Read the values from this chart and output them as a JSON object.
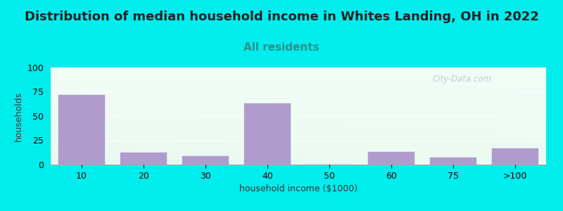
{
  "title": "Distribution of median household income in Whites Landing, OH in 2022",
  "subtitle": "All residents",
  "xlabel": "household income ($1000)",
  "ylabel": "households",
  "categories": [
    "10",
    "20",
    "30",
    "40",
    "50",
    "60",
    "75",
    ">100"
  ],
  "values": [
    72,
    12,
    9,
    63,
    0,
    13,
    7,
    17
  ],
  "bar_color": "#b09ccc",
  "background_color": "#00eded",
  "plot_bg_top_left": "#d8f0dc",
  "plot_bg_top_right": "#eef8f8",
  "plot_bg_bottom_left": "#d4eeda",
  "plot_bg_bottom_right": "#f8fefe",
  "ylim": [
    0,
    100
  ],
  "yticks": [
    0,
    25,
    50,
    75,
    100
  ],
  "title_fontsize": 13,
  "subtitle_fontsize": 11,
  "axis_fontsize": 9,
  "tick_fontsize": 9,
  "watermark": "City-Data.com",
  "subtitle_color": "#2a9090",
  "title_color": "#222222",
  "grid_color": "#ccddcc",
  "spine_color": "#aaaaaa"
}
